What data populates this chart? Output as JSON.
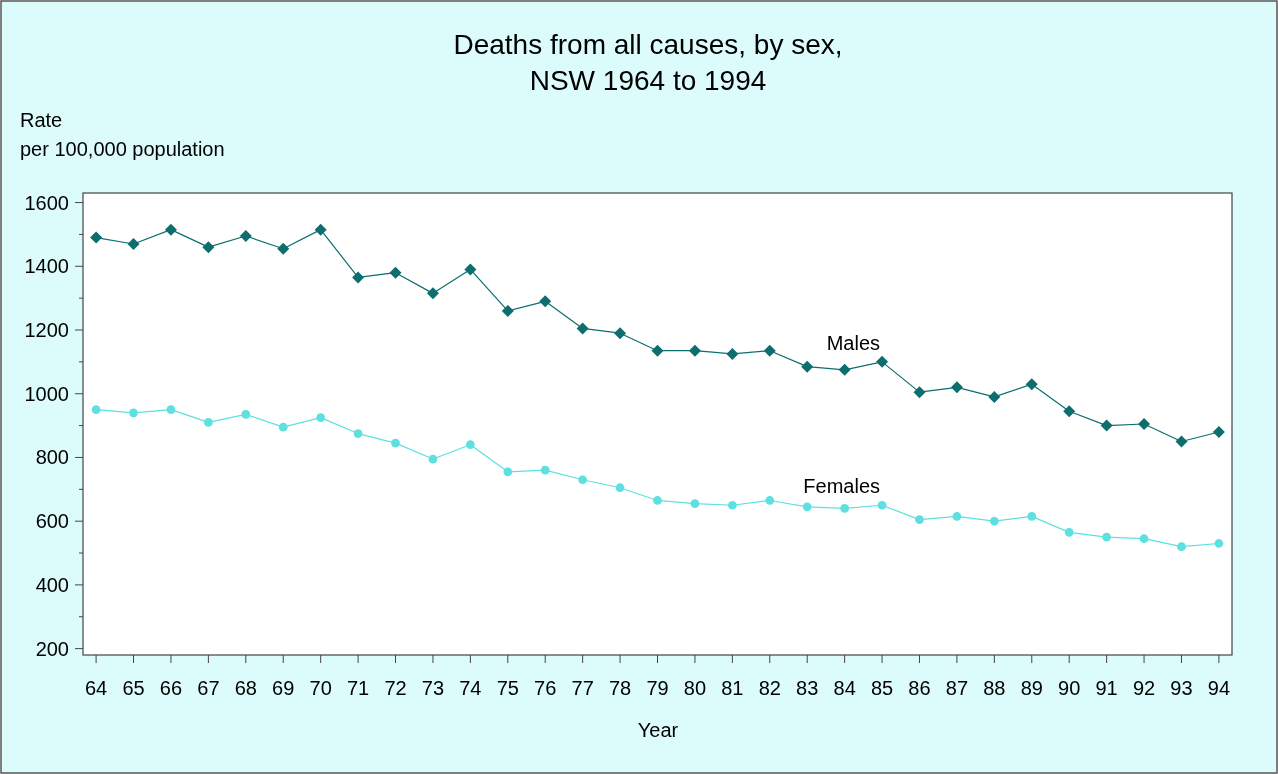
{
  "chart_data": {
    "type": "line",
    "title": "Deaths from all causes, by sex,\nNSW 1964 to 1994",
    "xlabel": "Year",
    "ylabel": "Rate\nper 100,000 population",
    "categories": [
      "64",
      "65",
      "66",
      "67",
      "68",
      "69",
      "70",
      "71",
      "72",
      "73",
      "74",
      "75",
      "76",
      "77",
      "78",
      "79",
      "80",
      "81",
      "82",
      "83",
      "84",
      "85",
      "86",
      "87",
      "88",
      "89",
      "90",
      "91",
      "92",
      "93",
      "94"
    ],
    "series": [
      {
        "name": "Males",
        "color": "#0e6e6e",
        "marker": "diamond",
        "values": [
          1490,
          1470,
          1515,
          1460,
          1495,
          1455,
          1515,
          1365,
          1380,
          1315,
          1390,
          1260,
          1290,
          1205,
          1190,
          1135,
          1135,
          1125,
          1135,
          1085,
          1075,
          1100,
          1005,
          1020,
          990,
          1030,
          945,
          900,
          905,
          850,
          880
        ]
      },
      {
        "name": "Females",
        "color": "#5ee0e0",
        "marker": "circle",
        "values": [
          950,
          940,
          950,
          910,
          935,
          895,
          925,
          875,
          845,
          795,
          840,
          755,
          760,
          730,
          705,
          665,
          655,
          650,
          665,
          645,
          640,
          650,
          605,
          615,
          600,
          615,
          565,
          550,
          545,
          520,
          530
        ]
      }
    ],
    "ylim": [
      180,
      1630
    ],
    "yticks": [
      200,
      {
        "value": 300,
        "label": null
      },
      400,
      {
        "value": 500,
        "label": null
      },
      600,
      {
        "value": 700,
        "label": null
      },
      800,
      {
        "value": 900,
        "label": null
      },
      1000,
      {
        "value": 1100,
        "label": null
      },
      1200,
      {
        "value": 1300,
        "label": null
      },
      1400,
      {
        "value": 1500,
        "label": null
      },
      1600
    ],
    "grid": false
  }
}
